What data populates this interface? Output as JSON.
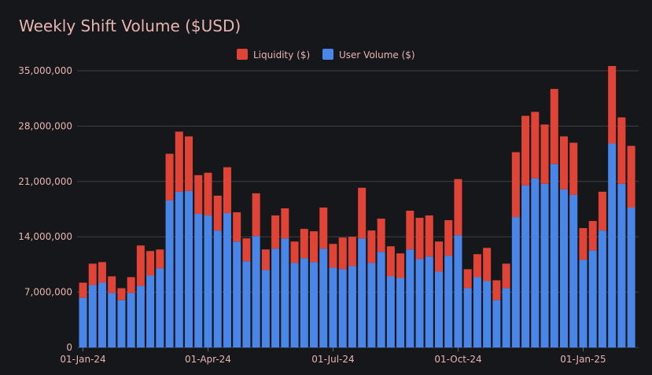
{
  "chart_data": {
    "type": "bar",
    "stacked": true,
    "title": "Weekly Shift Volume ($USD)",
    "legend_position": "top",
    "grid": true,
    "ylim": [
      0,
      35000000
    ],
    "y_ticks": [
      0,
      7000000,
      14000000,
      21000000,
      28000000,
      35000000
    ],
    "y_tick_labels": [
      "0",
      "7,000,000",
      "14,000,000",
      "21,000,000",
      "28,000,000",
      "35,000,000"
    ],
    "x_tick_labels": [
      {
        "index": 0,
        "label": "01-Jan-24"
      },
      {
        "index": 13,
        "label": "01-Apr-24"
      },
      {
        "index": 26,
        "label": "01-Jul-24"
      },
      {
        "index": 39,
        "label": "01-Oct-24"
      },
      {
        "index": 52,
        "label": "01-Jan-25"
      }
    ],
    "series": [
      {
        "name": "User Volume ($)",
        "color": "#4a86e8",
        "values": [
          6300000,
          7900000,
          8200000,
          6900000,
          6000000,
          6900000,
          7800000,
          9100000,
          10000000,
          18600000,
          19700000,
          19800000,
          16900000,
          16700000,
          14800000,
          17000000,
          13400000,
          10900000,
          14100000,
          9800000,
          12500000,
          13800000,
          10700000,
          11300000,
          10800000,
          12500000,
          10100000,
          9900000,
          10300000,
          13800000,
          10700000,
          12100000,
          9000000,
          8800000,
          12400000,
          11200000,
          11500000,
          9600000,
          11600000,
          14200000,
          7500000,
          8900000,
          8400000,
          6000000,
          7500000,
          16500000,
          20500000,
          21400000,
          20700000,
          23200000,
          20000000,
          19300000,
          11100000,
          12300000,
          14800000,
          25800000,
          20700000,
          17700000
        ]
      },
      {
        "name": "Liquidity ($)",
        "color": "#e04437",
        "values": [
          1900000,
          2700000,
          2600000,
          2100000,
          1500000,
          2000000,
          5100000,
          3100000,
          2400000,
          5900000,
          7600000,
          6900000,
          4900000,
          5400000,
          4400000,
          5800000,
          3700000,
          2900000,
          5400000,
          2600000,
          4200000,
          3800000,
          2700000,
          3700000,
          3900000,
          5200000,
          3000000,
          4000000,
          3700000,
          6400000,
          4100000,
          4200000,
          3800000,
          3100000,
          4900000,
          5200000,
          5200000,
          3800000,
          4500000,
          7100000,
          2400000,
          2900000,
          4200000,
          2500000,
          3100000,
          8200000,
          8800000,
          8400000,
          7500000,
          9500000,
          6700000,
          6600000,
          4000000,
          3700000,
          4900000,
          9800000,
          8400000,
          7800000
        ]
      }
    ]
  }
}
